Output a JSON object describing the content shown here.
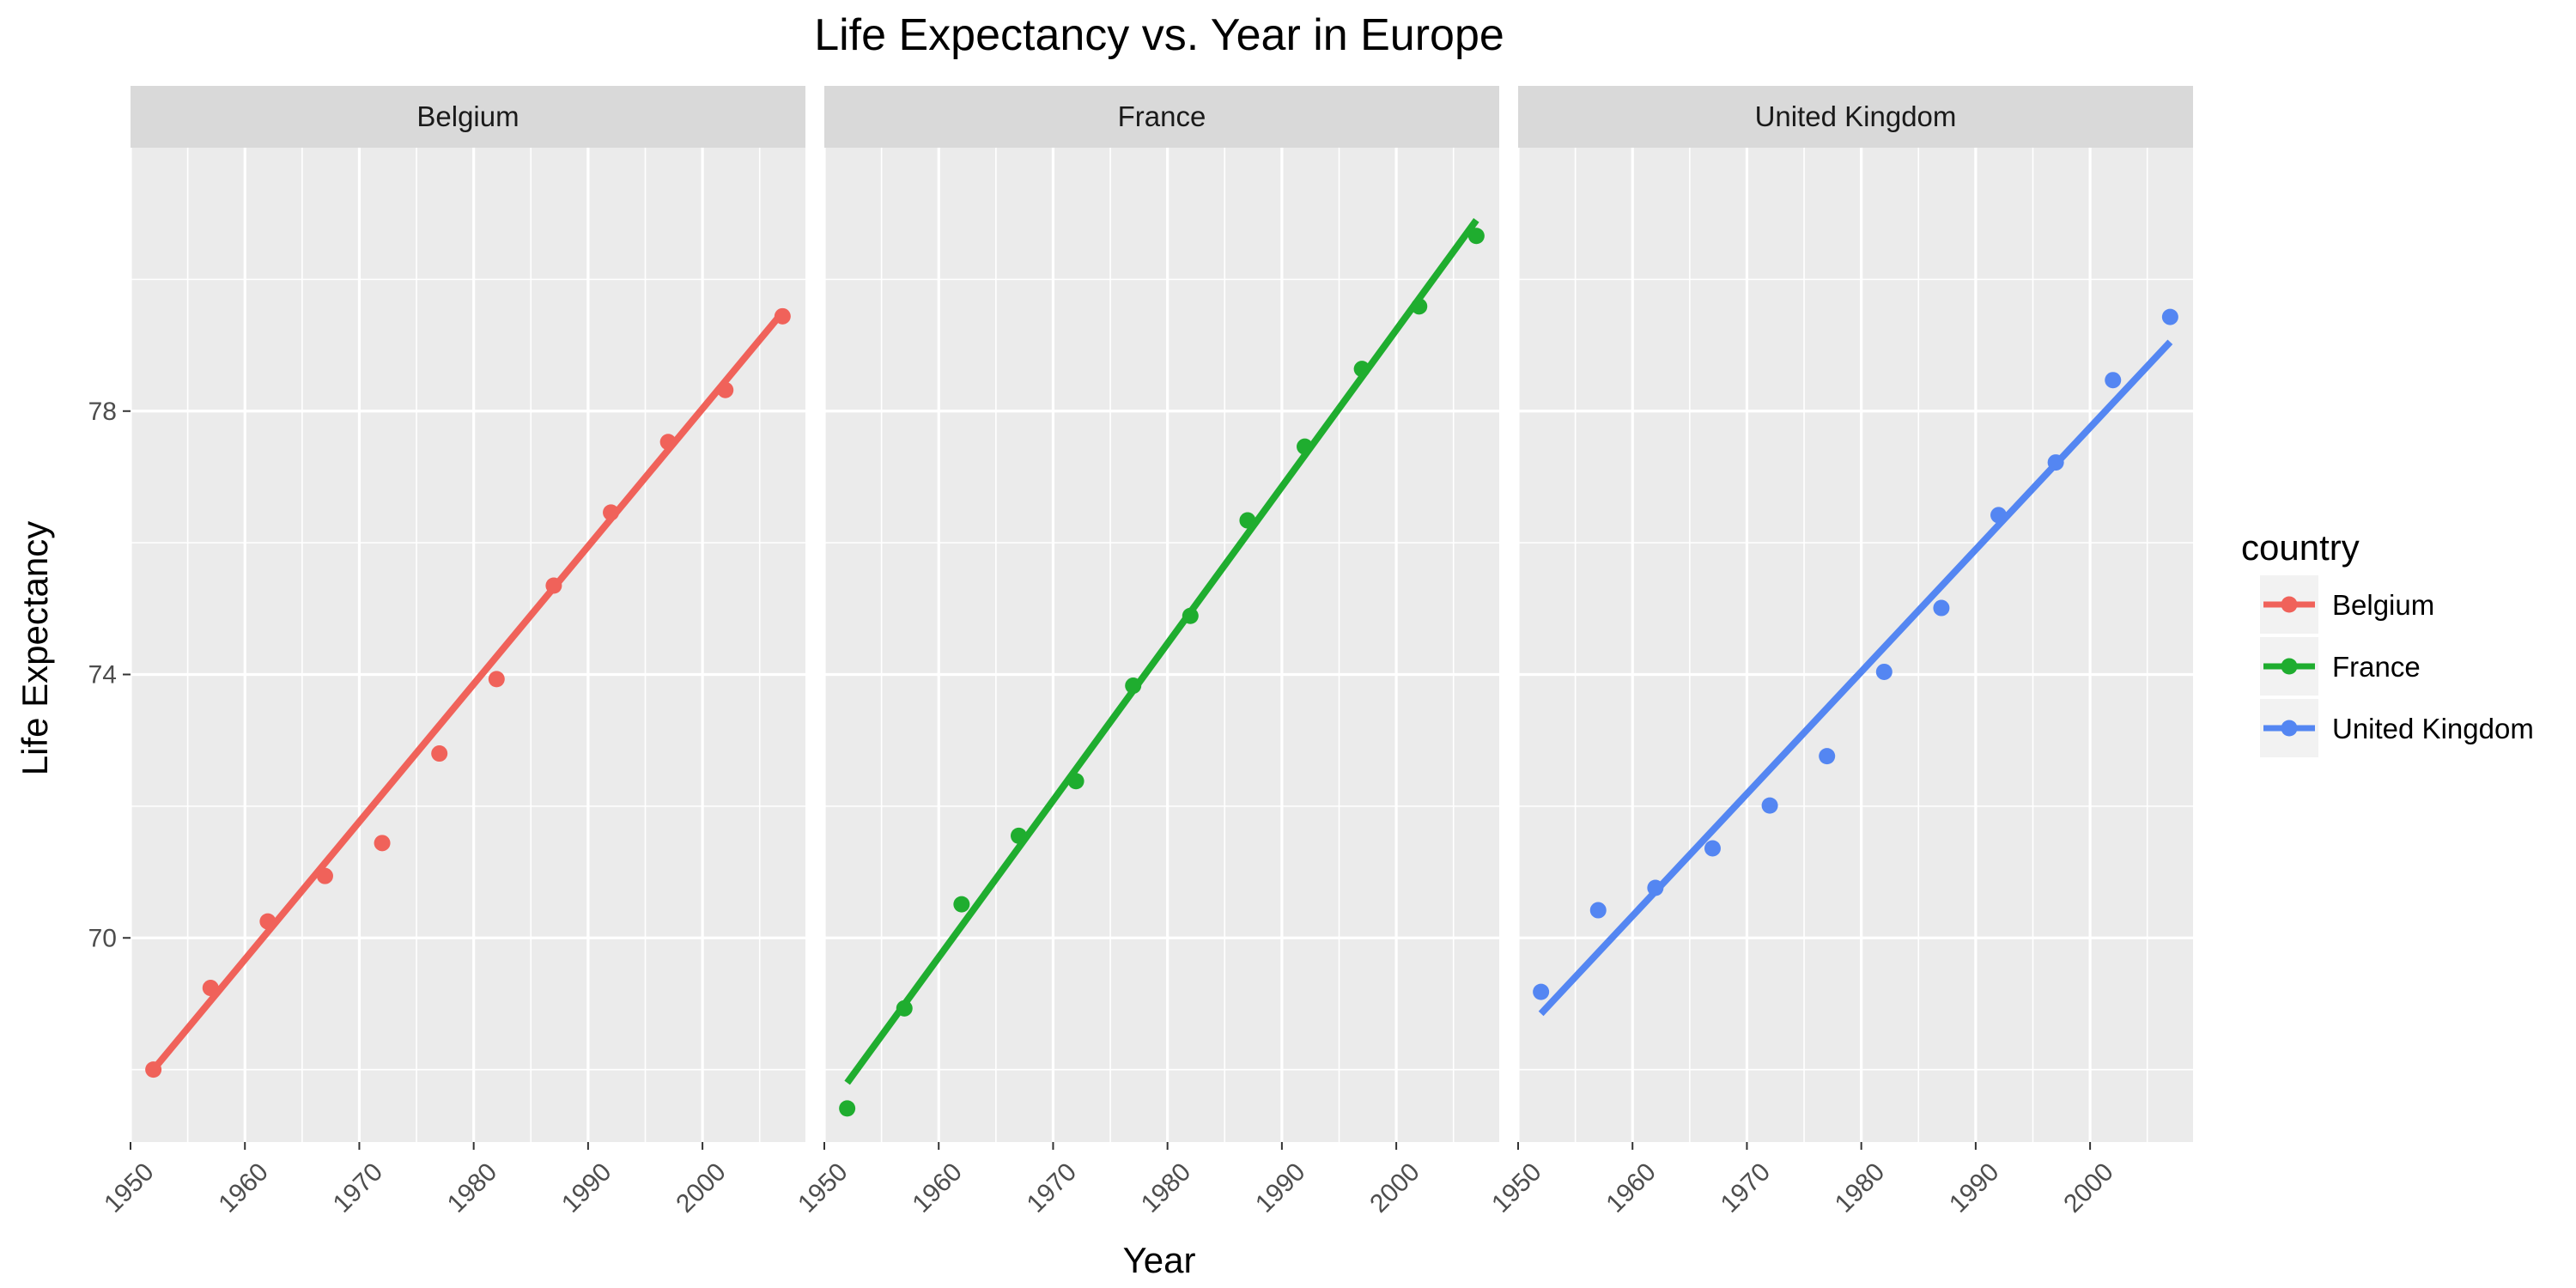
{
  "chart_data": {
    "type": "line",
    "title": "Life Expectancy vs. Year in Europe",
    "xlabel": "Year",
    "ylabel": "Life Expectancy",
    "xlim": [
      1950,
      2009
    ],
    "ylim": [
      66.9,
      82.0
    ],
    "x_ticks": [
      1950,
      1960,
      1970,
      1980,
      1990,
      2000
    ],
    "y_ticks": [
      70,
      74,
      78
    ],
    "x_tick_labels": [
      "1950",
      "1960",
      "1970",
      "1980",
      "1990",
      "2000"
    ],
    "y_tick_labels": [
      "70",
      "74",
      "78"
    ],
    "x": [
      1952,
      1957,
      1962,
      1967,
      1972,
      1977,
      1982,
      1987,
      1992,
      1997,
      2002,
      2007
    ],
    "grid": true,
    "legend": {
      "title": "country",
      "position": "right"
    },
    "series": [
      {
        "name": "Belgium",
        "color": "#f0625a",
        "values": [
          68.0,
          69.24,
          70.25,
          70.94,
          71.44,
          72.8,
          73.93,
          75.35,
          76.46,
          77.53,
          78.32,
          79.44
        ],
        "trend": [
          68.0,
          79.5
        ]
      },
      {
        "name": "France",
        "color": "#1fad2f",
        "values": [
          67.41,
          68.93,
          70.51,
          71.55,
          72.38,
          73.83,
          74.89,
          76.34,
          77.46,
          78.64,
          79.59,
          80.66
        ],
        "trend": [
          67.8,
          80.9
        ]
      },
      {
        "name": "United Kingdom",
        "color": "#5486f2",
        "values": [
          69.18,
          70.42,
          70.76,
          71.36,
          72.01,
          72.76,
          74.04,
          75.01,
          76.42,
          77.22,
          78.47,
          79.43
        ],
        "trend": [
          68.85,
          79.05
        ]
      }
    ]
  }
}
